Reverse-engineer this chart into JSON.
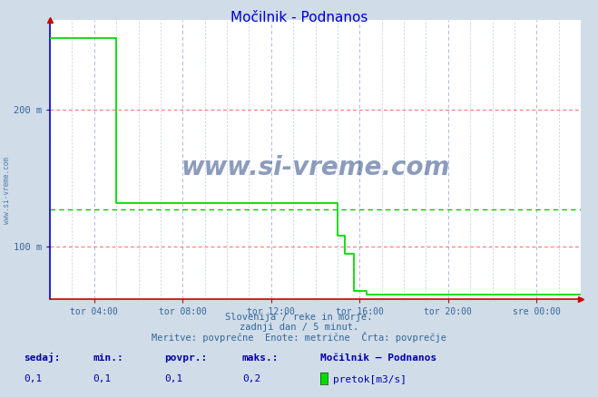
{
  "title": "Močilnik - Podnanos",
  "title_color": "#0000cc",
  "bg_color": "#d0dce8",
  "plot_bg_color": "#ffffff",
  "line_color": "#00dd00",
  "avg_line_color": "#00cc00",
  "grid_color_red": "#ff6666",
  "grid_color_blue": "#aabbdd",
  "xlim_start": 0,
  "xlim_end": 288,
  "ylim": [
    62,
    265
  ],
  "yticks": [
    100,
    200
  ],
  "ytick_labels": [
    "100 m",
    "200 m"
  ],
  "xtick_positions": [
    24,
    72,
    120,
    168,
    216,
    264
  ],
  "xtick_labels": [
    "tor 04:00",
    "tor 08:00",
    "tor 12:00",
    "tor 16:00",
    "tor 20:00",
    "sre 00:00"
  ],
  "avg_value": 127,
  "subtitle1": "Slovenija / reke in morje.",
  "subtitle2": "zadnji dan / 5 minut.",
  "subtitle3": "Meritve: povprečne  Enote: metrične  Črta: povprečje",
  "footer_label1": "sedaj:",
  "footer_label2": "min.:",
  "footer_label3": "povpr.:",
  "footer_label4": "maks.:",
  "footer_val1": "0,1",
  "footer_val2": "0,1",
  "footer_val3": "0,1",
  "footer_val4": "0,2",
  "footer_series": "Močilnik – Podnanos",
  "footer_legend": "pretok[m3/s]",
  "data_x": [
    0,
    36,
    36,
    156,
    156,
    160,
    160,
    165,
    165,
    172,
    172,
    288
  ],
  "data_y": [
    252,
    252,
    132,
    132,
    108,
    108,
    95,
    95,
    68,
    68,
    65,
    65
  ]
}
